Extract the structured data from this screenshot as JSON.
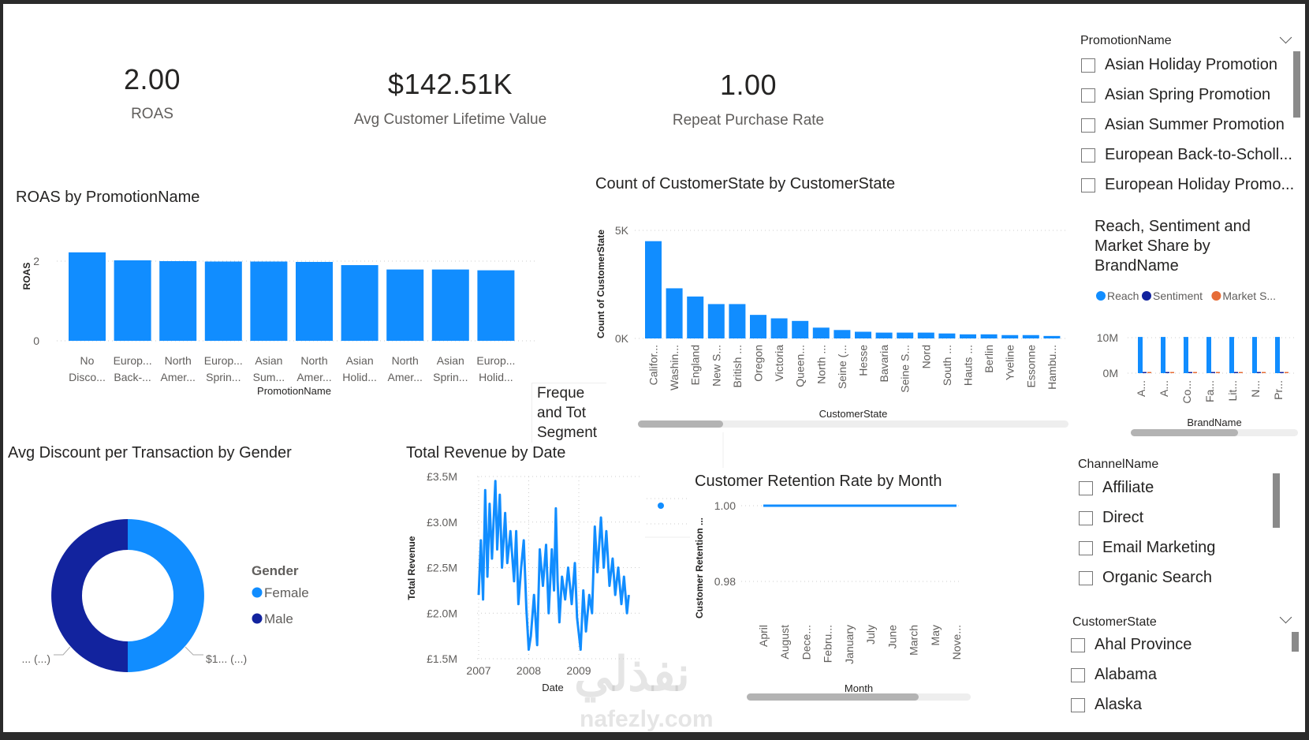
{
  "kpis": [
    {
      "value": "2.00",
      "label": "ROAS"
    },
    {
      "value": "$142.51K",
      "label": "Avg Customer Lifetime Value"
    },
    {
      "value": "1.00",
      "label": "Repeat Purchase Rate"
    }
  ],
  "slicers": {
    "promotion": {
      "title": "PromotionName",
      "items": [
        "Asian Holiday Promotion",
        "Asian Spring Promotion",
        "Asian Summer Promotion",
        "European Back-to-Scholl...",
        "European Holiday Promo..."
      ]
    },
    "channel": {
      "title": "ChannelName",
      "items": [
        "Affiliate",
        "Direct",
        "Email Marketing",
        "Organic Search"
      ]
    },
    "state": {
      "title": "CustomerState",
      "items": [
        "Ahal Province",
        "Alabama",
        "Alaska"
      ]
    }
  },
  "overlay_visual": {
    "title_lines": [
      "Freque",
      "and Tot",
      "Segment"
    ]
  },
  "watermark": {
    "arabic": "نفذلي",
    "latin": "nafezly.com"
  },
  "colors": {
    "primary": "#118DFF",
    "dark_blue": "#12239E",
    "orange": "#E66C37"
  },
  "chart_data": [
    {
      "id": "roas",
      "type": "bar",
      "title": "ROAS by PromotionName",
      "xlabel": "PromotionName",
      "ylabel": "ROAS",
      "ylim": [
        0,
        2.3
      ],
      "yticks": [
        "0",
        "2"
      ],
      "grid": true,
      "categories": [
        "No Disco...",
        "Europ... Back-...",
        "North Amer...",
        "Europ... Sprin...",
        "Asian Sum...",
        "North Amer...",
        "Asian Holid...",
        "North Amer...",
        "Asian Sprin...",
        "Europ... Holid..."
      ],
      "values": [
        2.22,
        2.02,
        2.0,
        1.99,
        1.99,
        1.98,
        1.9,
        1.79,
        1.79,
        1.77
      ]
    },
    {
      "id": "state",
      "type": "bar",
      "title": "Count of CustomerState by CustomerState",
      "xlabel": "CustomerState",
      "ylabel": "Count of CustomerState",
      "ylim": [
        0,
        5000
      ],
      "yticks": [
        "0K",
        "5K"
      ],
      "grid": true,
      "categories": [
        "Califor...",
        "Washin...",
        "England",
        "New S...",
        "British ...",
        "Oregon",
        "Victoria",
        "Queen...",
        "North ...",
        "Seine (...",
        "Hesse",
        "Bavaria",
        "Seine S...",
        "Nord",
        "South ...",
        "Hauts ...",
        "Berlin",
        "Yveline",
        "Essonne",
        "Hambu..."
      ],
      "values": [
        4500,
        2320,
        1940,
        1590,
        1590,
        1090,
        930,
        810,
        500,
        390,
        310,
        270,
        270,
        270,
        230,
        190,
        190,
        155,
        155,
        115
      ]
    },
    {
      "id": "brand",
      "type": "bar",
      "title": "Reach, Sentiment and Market Share by BrandName",
      "xlabel": "BrandName",
      "ylim": [
        0,
        10000000
      ],
      "yticks": [
        "0M",
        "10M"
      ],
      "legend_position": "top",
      "categories": [
        "A...",
        "A...",
        "Co...",
        "Fa...",
        "Lit...",
        "N...",
        "Pr..."
      ],
      "series": [
        {
          "name": "Reach",
          "color": "#118DFF",
          "values": [
            10200000,
            10200000,
            10200000,
            10200000,
            10200000,
            10200000,
            10200000
          ]
        },
        {
          "name": "Sentiment",
          "color": "#12239E",
          "values": [
            0,
            0,
            0,
            0,
            0,
            0,
            0
          ]
        },
        {
          "name": "Market S...",
          "color": "#E66C37",
          "values": [
            0,
            0,
            0,
            0,
            0,
            0,
            0
          ]
        }
      ]
    },
    {
      "id": "gender",
      "type": "pie",
      "title": "Avg Discount per Transaction by Gender",
      "legend_title": "Gender",
      "legend_position": "right",
      "categories": [
        "Female",
        "Male"
      ],
      "values": [
        50,
        50
      ],
      "colors": [
        "#118DFF",
        "#12239E"
      ],
      "data_labels": [
        "$1... (...)",
        "... (...)"
      ]
    },
    {
      "id": "revenue",
      "type": "line",
      "title": "Total Revenue by Date",
      "xlabel": "Date",
      "ylabel": "Total Revenue",
      "ylim": [
        1.5,
        3.5
      ],
      "yticks": [
        "£1.5M",
        "£2.0M",
        "£2.5M",
        "£3.0M",
        "£3.5M"
      ],
      "xticks": [
        "2007",
        "2008",
        "2009"
      ],
      "grid": true,
      "x": [
        "2007-01-01",
        "2007-01-17",
        "2007-02-02",
        "2007-02-18",
        "2007-03-06",
        "2007-03-22",
        "2007-04-08",
        "2007-05-03",
        "2007-05-16",
        "2007-06-04",
        "2007-06-20",
        "2007-07-13",
        "2007-07-29",
        "2007-08-21",
        "2007-09-16",
        "2007-10-02",
        "2007-10-18",
        "2007-11-07",
        "2007-11-26",
        "2007-12-15",
        "2008-01-01",
        "2008-01-17",
        "2008-02-09",
        "2008-03-03",
        "2008-03-22",
        "2008-04-14",
        "2008-05-07",
        "2008-05-26",
        "2008-06-18",
        "2008-07-04",
        "2008-07-17",
        "2008-07-30",
        "2008-08-12",
        "2008-08-31",
        "2008-09-23",
        "2008-10-15",
        "2008-11-10",
        "2008-12-03",
        "2008-12-19",
        "2009-01-14",
        "2009-02-02",
        "2009-02-22",
        "2009-03-18",
        "2009-04-07",
        "2009-04-27",
        "2009-05-16",
        "2009-06-11",
        "2009-07-01",
        "2009-07-20",
        "2009-08-12",
        "2009-09-04",
        "2009-09-23",
        "2009-10-15",
        "2009-11-07",
        "2009-11-26",
        "2009-12-18",
        "2009-12-31"
      ],
      "y": [
        2.2,
        2.8,
        2.15,
        3.35,
        2.4,
        3.2,
        2.6,
        3.45,
        2.7,
        3.3,
        2.5,
        3.1,
        2.55,
        2.9,
        2.35,
        2.9,
        2.1,
        2.5,
        2.8,
        2.05,
        1.6,
        1.75,
        2.2,
        1.65,
        2.7,
        2.3,
        2.75,
        2.0,
        2.7,
        2.25,
        3.15,
        2.35,
        1.9,
        2.4,
        2.15,
        2.5,
        2.1,
        2.55,
        1.95,
        1.6,
        2.25,
        1.8,
        2.2,
        2.0,
        2.95,
        2.45,
        3.05,
        2.5,
        2.9,
        2.3,
        2.6,
        2.2,
        2.5,
        2.1,
        2.4,
        2.0,
        2.2
      ],
      "unit": "£M"
    },
    {
      "id": "retention",
      "type": "line",
      "title": "Customer Retention Rate by Month",
      "xlabel": "Month",
      "ylabel": "Customer Retention ...",
      "ylim": [
        0.97,
        1.0
      ],
      "yticks": [
        "0.98",
        "1.00"
      ],
      "grid": true,
      "categories": [
        "April",
        "August",
        "Dece...",
        "Febru...",
        "January",
        "July",
        "June",
        "March",
        "May",
        "Nove..."
      ],
      "values": [
        1.0,
        1.0,
        1.0,
        1.0,
        1.0,
        1.0,
        1.0,
        1.0,
        1.0,
        1.0
      ]
    }
  ]
}
